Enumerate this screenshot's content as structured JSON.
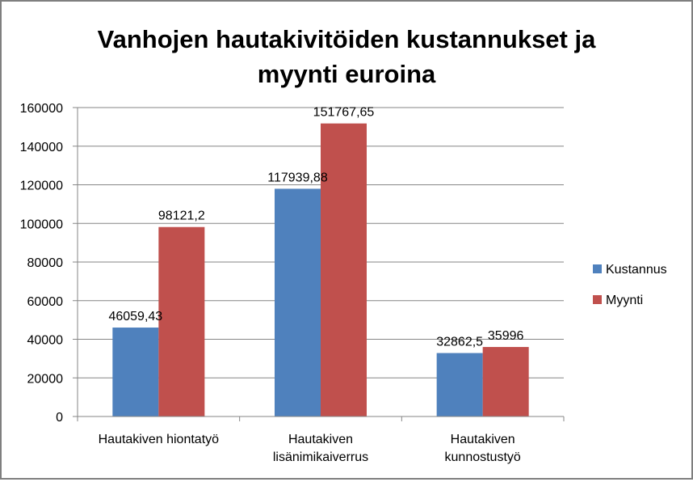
{
  "chart_data": {
    "type": "bar",
    "title": "Vanhojen hautakivitöiden kustannukset ja myynti euroina",
    "title_lines": [
      "Vanhojen hautakivitöiden kustannukset ja",
      "myynti euroina"
    ],
    "categories": [
      [
        "Hautakiven hiontatyö"
      ],
      [
        "Hautakiven",
        "lisänimikaiverrus"
      ],
      [
        "Hautakiven",
        "kunnostustyö"
      ]
    ],
    "series": [
      {
        "name": "Kustannus",
        "color": "#4f81bd",
        "values": [
          46059.43,
          117939.88,
          32862.5
        ],
        "labels": [
          "46059,43",
          "117939,88",
          "32862,5"
        ]
      },
      {
        "name": "Myynti",
        "color": "#c0504d",
        "values": [
          98121.2,
          151767.65,
          35996
        ],
        "labels": [
          "98121,2",
          "151767,65",
          "35996"
        ]
      }
    ],
    "ylim": [
      0,
      160000
    ],
    "yticks": [
      "0",
      "20000",
      "40000",
      "60000",
      "80000",
      "100000",
      "120000",
      "140000",
      "160000"
    ],
    "xlabel": "",
    "ylabel": "",
    "grid": true,
    "legend_position": "right"
  }
}
